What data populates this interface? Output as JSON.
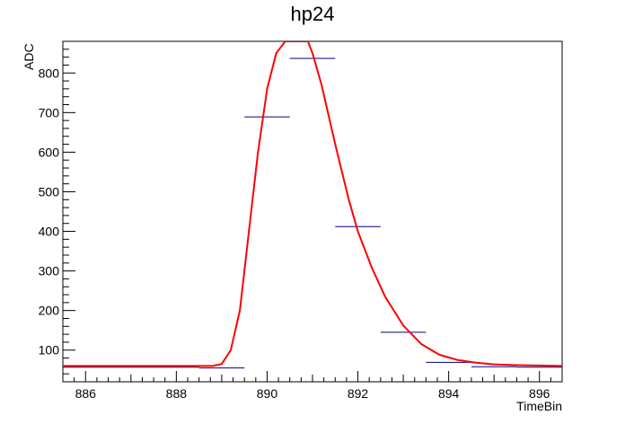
{
  "chart_data": {
    "type": "line",
    "title": "hp24",
    "xlabel": "TimeBin",
    "ylabel": "ADC",
    "xlim": [
      885.5,
      896.5
    ],
    "ylim": [
      20,
      880
    ],
    "xticks": [
      "886",
      "888",
      "890",
      "892",
      "894",
      "896"
    ],
    "yticks": [
      "100",
      "200",
      "300",
      "400",
      "500",
      "600",
      "700",
      "800"
    ],
    "grid": false,
    "histogram": {
      "name": "hp24",
      "color": "#000080",
      "bin_centers": [
        886,
        887,
        888,
        889,
        890,
        891,
        892,
        893,
        894,
        895,
        896
      ],
      "values": [
        57,
        57,
        57,
        55,
        689,
        837,
        412,
        145,
        69,
        58,
        57
      ]
    },
    "fit": {
      "color": "#ff0000",
      "x": [
        885.5,
        886,
        887,
        888,
        888.5,
        888.8,
        889.0,
        889.2,
        889.4,
        889.6,
        889.8,
        890.0,
        890.2,
        890.4,
        890.5,
        890.9,
        891.0,
        891.2,
        891.5,
        891.8,
        892.0,
        892.3,
        892.6,
        893.0,
        893.4,
        893.8,
        894.2,
        894.6,
        895.0,
        895.5,
        896.0,
        896.5
      ],
      "y": [
        60,
        60,
        60,
        60,
        60,
        60,
        65,
        100,
        200,
        400,
        600,
        760,
        850,
        880,
        880,
        880,
        850,
        770,
        620,
        480,
        400,
        310,
        235,
        162,
        115,
        88,
        75,
        68,
        64,
        62,
        61,
        60
      ]
    }
  }
}
